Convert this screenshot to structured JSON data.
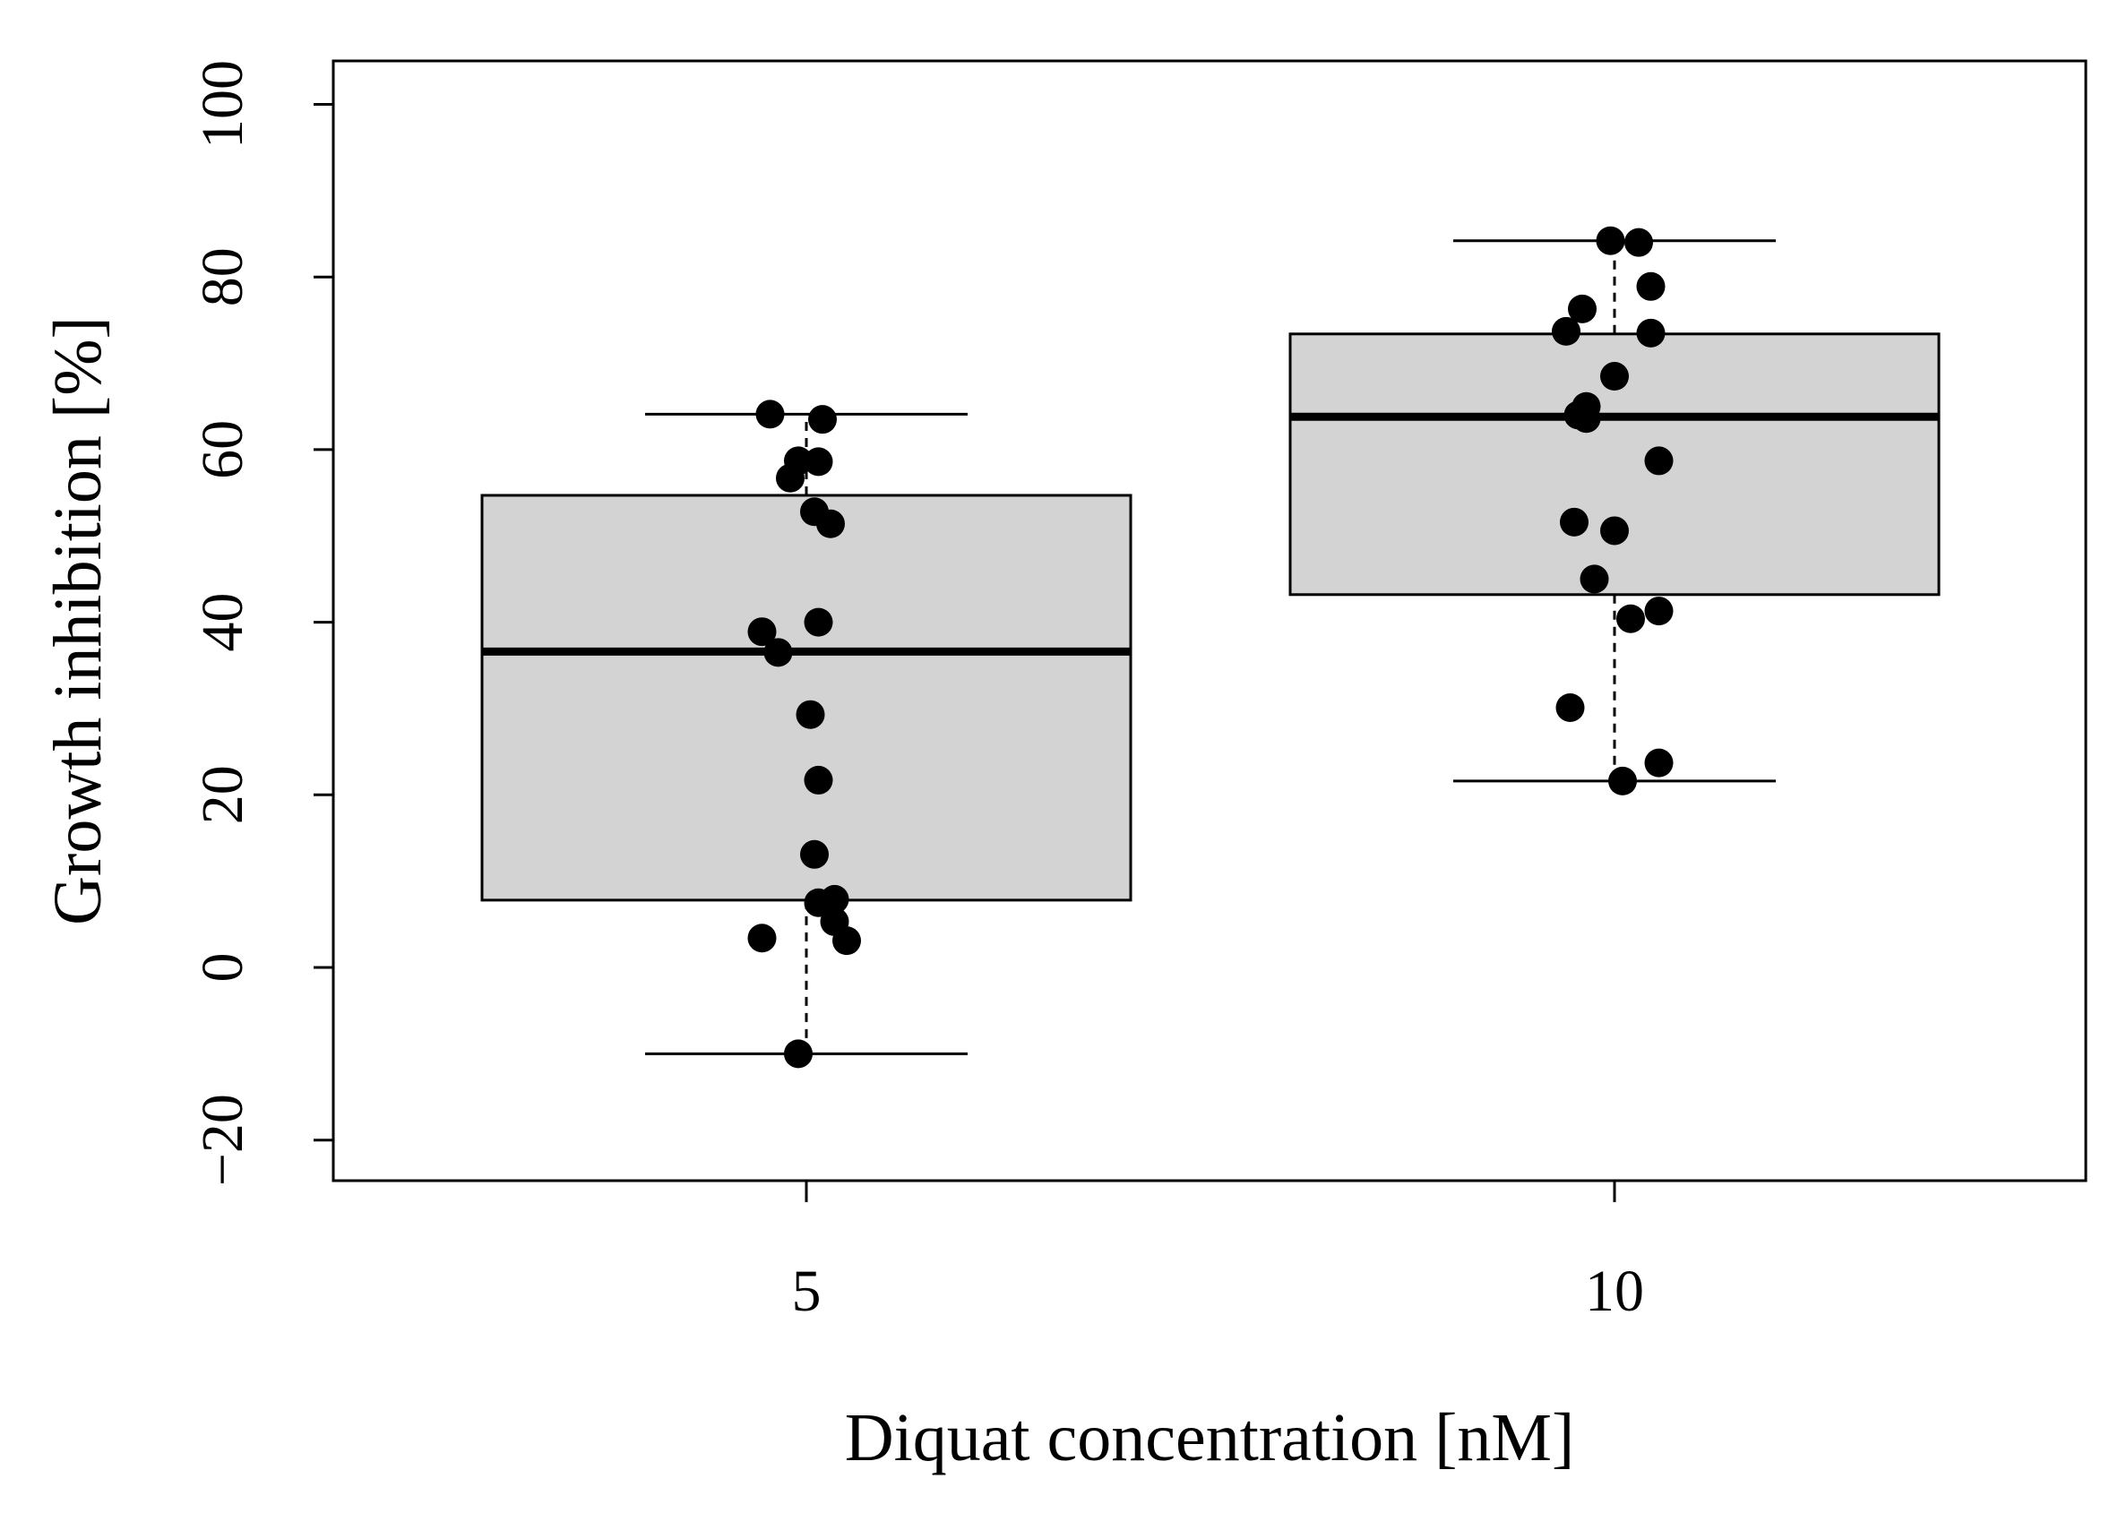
{
  "chart_data": {
    "type": "box",
    "xlabel": "Diquat concentration [nM]",
    "ylabel": "Growth inhibition [%]",
    "ylim": [
      -25,
      105
    ],
    "yticks": [
      -20,
      0,
      20,
      40,
      60,
      80,
      100
    ],
    "ytick_labels": [
      "−20",
      "0",
      "20",
      "40",
      "60",
      "80",
      "100"
    ],
    "grid": false,
    "legend": "none",
    "colors": {
      "box_fill": "#d3d3d3",
      "stroke": "#000000",
      "points": "#000000"
    },
    "groups": [
      {
        "label": "5",
        "whisker_low": -10,
        "q1": 7.8,
        "median": 36.6,
        "q3": 54.7,
        "whisker_high": 64.1,
        "points": [
          {
            "jitter": -0.09,
            "y": 64.1
          },
          {
            "jitter": 0.04,
            "y": 63.5
          },
          {
            "jitter": -0.02,
            "y": 58.7
          },
          {
            "jitter": 0.03,
            "y": 58.6
          },
          {
            "jitter": -0.04,
            "y": 56.7
          },
          {
            "jitter": 0.02,
            "y": 52.8
          },
          {
            "jitter": 0.06,
            "y": 51.4
          },
          {
            "jitter": 0.03,
            "y": 40.0
          },
          {
            "jitter": -0.11,
            "y": 38.9
          },
          {
            "jitter": -0.07,
            "y": 36.5
          },
          {
            "jitter": 0.01,
            "y": 29.3
          },
          {
            "jitter": 0.03,
            "y": 21.7
          },
          {
            "jitter": 0.02,
            "y": 13.1
          },
          {
            "jitter": 0.07,
            "y": 7.9
          },
          {
            "jitter": 0.03,
            "y": 7.5
          },
          {
            "jitter": 0.07,
            "y": 5.3
          },
          {
            "jitter": -0.11,
            "y": 3.4
          },
          {
            "jitter": 0.1,
            "y": 3.1
          },
          {
            "jitter": -0.02,
            "y": -10.0
          }
        ]
      },
      {
        "label": "10",
        "whisker_low": 21.6,
        "q1": 43.2,
        "median": 63.8,
        "q3": 73.4,
        "whisker_high": 84.2,
        "points": [
          {
            "jitter": -0.01,
            "y": 84.2
          },
          {
            "jitter": 0.06,
            "y": 84.0
          },
          {
            "jitter": 0.09,
            "y": 78.9
          },
          {
            "jitter": -0.08,
            "y": 76.3
          },
          {
            "jitter": -0.12,
            "y": 73.7
          },
          {
            "jitter": 0.09,
            "y": 73.5
          },
          {
            "jitter": 0.0,
            "y": 68.5
          },
          {
            "jitter": -0.07,
            "y": 65.0
          },
          {
            "jitter": -0.09,
            "y": 64.0
          },
          {
            "jitter": -0.07,
            "y": 63.6
          },
          {
            "jitter": 0.11,
            "y": 58.7
          },
          {
            "jitter": -0.1,
            "y": 51.6
          },
          {
            "jitter": 0.0,
            "y": 50.6
          },
          {
            "jitter": -0.05,
            "y": 45.0
          },
          {
            "jitter": 0.11,
            "y": 41.3
          },
          {
            "jitter": 0.04,
            "y": 40.4
          },
          {
            "jitter": -0.11,
            "y": 30.1
          },
          {
            "jitter": 0.11,
            "y": 23.7
          },
          {
            "jitter": 0.02,
            "y": 21.6
          }
        ]
      }
    ]
  }
}
